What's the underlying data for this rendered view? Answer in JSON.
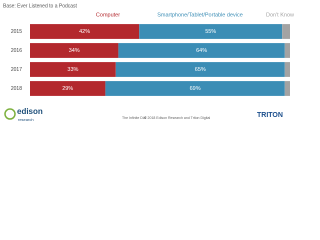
{
  "chart_data": {
    "type": "stacked-bar-horizontal",
    "title": "Base: Ever Listened to a Podcast",
    "categories": [
      "2015",
      "2016",
      "2017",
      "2018"
    ],
    "series": [
      {
        "name": "Computer",
        "color": "#b3282d",
        "values": [
          42,
          34,
          33,
          29
        ],
        "value_labels": [
          "42%",
          "34%",
          "33%",
          "29%"
        ]
      },
      {
        "name": "Smartphone/Tablet/Portable device",
        "color": "#3b8db5",
        "values": [
          55,
          64,
          65,
          69
        ],
        "value_labels": [
          "55%",
          "64%",
          "65%",
          "69%"
        ]
      },
      {
        "name": "Don't Know",
        "color": "#a3a3a3",
        "values": [
          3,
          2,
          2,
          2
        ]
      }
    ],
    "xlim": [
      0,
      100
    ]
  },
  "footer": {
    "source": "The Infinite Dial",
    "copyright": "© 2018 Edison Research and Triton Digital",
    "logo_left": "edison",
    "logo_left_sub": "research",
    "logo_right": "TRITON"
  }
}
